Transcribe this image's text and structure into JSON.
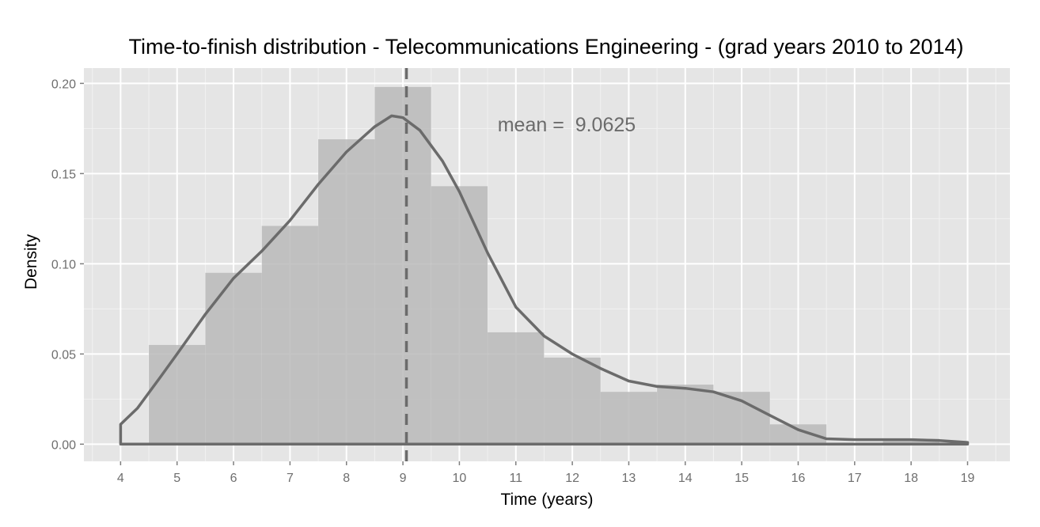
{
  "chart_data": {
    "type": "bar",
    "title": "Time-to-finish distribution - Telecommunications Engineering - (grad years 2010 to 2014)",
    "xlabel": "Time (years)",
    "ylabel": "Density",
    "xlim": [
      3.35,
      19.75
    ],
    "ylim": [
      -0.0095,
      0.2085
    ],
    "x_ticks": [
      4,
      5,
      6,
      7,
      8,
      9,
      10,
      11,
      12,
      13,
      14,
      15,
      16,
      17,
      18,
      19
    ],
    "y_ticks": [
      0.0,
      0.05,
      0.1,
      0.15,
      0.2
    ],
    "y_tick_labels": [
      "0.00",
      "0.05",
      "0.10",
      "0.15",
      "0.20"
    ],
    "grid": true,
    "histogram": {
      "bin_width": 1,
      "bin_centers": [
        5,
        6,
        7,
        8,
        9,
        10,
        11,
        12,
        13,
        14,
        15,
        16,
        17,
        18
      ],
      "density": [
        0.055,
        0.095,
        0.121,
        0.169,
        0.198,
        0.143,
        0.062,
        0.048,
        0.029,
        0.033,
        0.029,
        0.011,
        0.0,
        0.003
      ]
    },
    "density_curve": {
      "x": [
        4.0,
        4.3,
        4.7,
        5.0,
        5.5,
        6.0,
        6.5,
        7.0,
        7.5,
        8.0,
        8.5,
        8.8,
        9.0,
        9.3,
        9.7,
        10.0,
        10.5,
        11.0,
        11.5,
        12.0,
        12.5,
        13.0,
        13.5,
        14.0,
        14.5,
        15.0,
        15.5,
        16.0,
        16.5,
        17.0,
        17.5,
        18.0,
        18.5,
        19.0
      ],
      "y": [
        0.011,
        0.02,
        0.037,
        0.05,
        0.072,
        0.092,
        0.107,
        0.124,
        0.144,
        0.162,
        0.176,
        0.182,
        0.181,
        0.174,
        0.157,
        0.14,
        0.106,
        0.076,
        0.06,
        0.05,
        0.042,
        0.035,
        0.032,
        0.031,
        0.029,
        0.024,
        0.016,
        0.008,
        0.003,
        0.0025,
        0.0025,
        0.0025,
        0.002,
        0.001
      ]
    },
    "mean_line": {
      "x": 9.0625
    },
    "annotation": {
      "text": "mean =  9.0625",
      "x": 11.9,
      "y": 0.177
    },
    "colors": {
      "panel_background": "#e5e5e5",
      "grid_major": "#ffffff",
      "grid_minor": "#f2f2f2",
      "bars": "#bababa",
      "line": "#6b6b6b"
    }
  }
}
